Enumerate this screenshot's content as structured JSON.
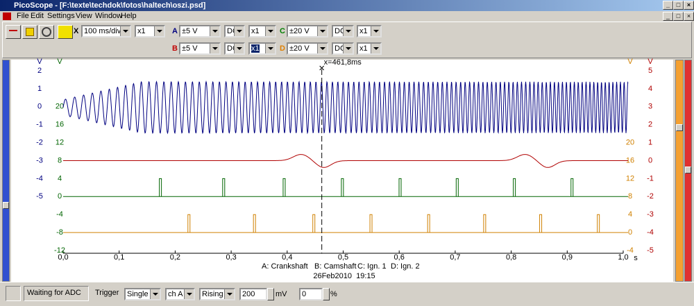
{
  "window": {
    "title": "PicoScope - [F:\\texte\\techdok\\fotos\\haltech\\oszi.psd]"
  },
  "menu": [
    "File",
    "Edit",
    "Settings",
    "View",
    "Window",
    "Help"
  ],
  "toolbar": {
    "timebase_label": "X",
    "timebase": "100 ms/div",
    "zoom": "x1",
    "channels": [
      {
        "label": "A",
        "range": "±5 V",
        "coupling": "DC",
        "gain": "x1"
      },
      {
        "label": "B",
        "range": "±5 V",
        "coupling": "DC",
        "gain": "x1"
      },
      {
        "label": "C",
        "range": "±20 V",
        "coupling": "DC",
        "gain": "x1"
      },
      {
        "label": "D",
        "range": "±20 V",
        "coupling": "DC",
        "gain": "x1"
      }
    ]
  },
  "chart_data": {
    "type": "line",
    "xlim": [
      0,
      1
    ],
    "xticks": [
      {
        "value": 0,
        "label": "0,0"
      },
      {
        "value": 0.1,
        "label": "0,1"
      },
      {
        "value": 0.2,
        "label": "0,2"
      },
      {
        "value": 0.3,
        "label": "0,3"
      },
      {
        "value": 0.4,
        "label": "0,4"
      },
      {
        "value": 0.5,
        "label": "0,5"
      },
      {
        "value": 0.6,
        "label": "0,6"
      },
      {
        "value": 0.7,
        "label": "0,7"
      },
      {
        "value": 0.8,
        "label": "0,8"
      },
      {
        "value": 0.9,
        "label": "0,9"
      },
      {
        "value": 1,
        "label": "1,0"
      }
    ],
    "x_unit": "s",
    "cursor": {
      "value": 0.4618,
      "label": "x=461,8ms"
    },
    "axes": [
      {
        "unit": "V",
        "color": "#000080",
        "ylim": [
          -8,
          2
        ],
        "yticks": [
          -5,
          -4,
          -3,
          -2,
          -1,
          0,
          1,
          2
        ]
      },
      {
        "unit": "V",
        "color": "#006400",
        "ylim": [
          -12,
          28
        ],
        "yticks": [
          -12,
          -8,
          -4,
          0,
          4,
          8,
          12,
          16,
          20
        ]
      },
      {
        "unit": "V",
        "color": "#d08000",
        "ylim": [
          -4,
          36
        ],
        "yticks": [
          -4,
          0,
          4,
          8,
          12,
          16,
          20
        ]
      },
      {
        "unit": "V",
        "color": "#b00000",
        "ylim": [
          -5,
          5
        ],
        "yticks": [
          -5,
          -4,
          -3,
          -2,
          -1,
          0,
          1,
          2,
          3,
          4,
          5
        ]
      }
    ],
    "series": [
      {
        "name": "A: Crankshaft",
        "color": "#000080"
      },
      {
        "name": "B: Camshaft",
        "color": "#b00000"
      },
      {
        "name": "C: Ign. 1",
        "color": "#006400",
        "x": [
          0.173,
          0.286,
          0.394,
          0.498,
          0.601,
          0.703,
          0.805,
          0.908
        ],
        "values": [
          4,
          4,
          4,
          4,
          4,
          4,
          4,
          4
        ]
      },
      {
        "name": "D: Ign. 2",
        "color": "#d08000",
        "x": [
          0.224,
          0.341,
          0.447,
          0.549,
          0.652,
          0.752,
          0.852,
          0.955
        ],
        "values": [
          4,
          4,
          4,
          4,
          4,
          4,
          4,
          4
        ]
      }
    ],
    "timestamp": "26Feb2010  19:15"
  },
  "status": {
    "state": "Waiting for ADC",
    "trigger_label": "Trigger",
    "mode": "Single",
    "source": "ch A",
    "edge": "Rising",
    "level": "200",
    "level_unit": "mV",
    "delay": "0",
    "delay_unit": "%"
  }
}
